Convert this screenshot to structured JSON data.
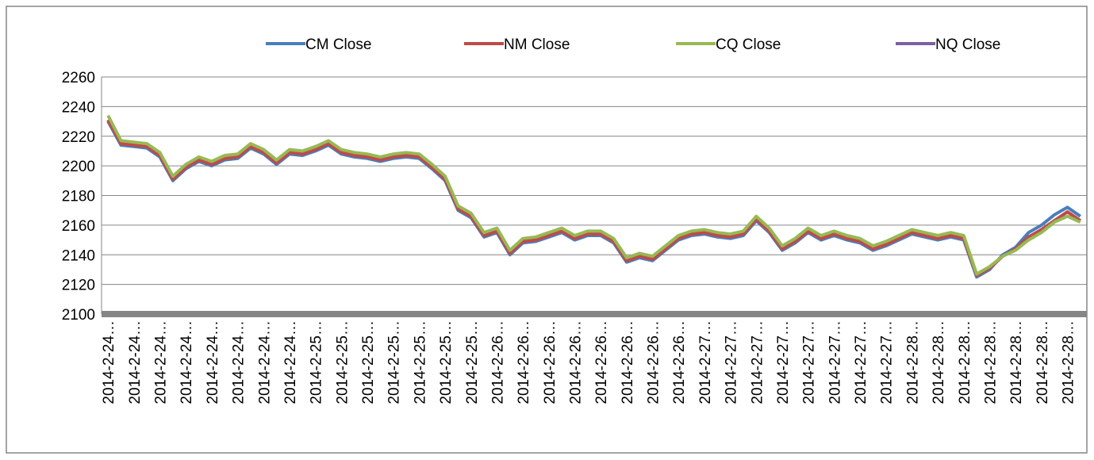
{
  "chart_data": {
    "type": "line",
    "categories": [
      "2014-2-24…",
      null,
      "2014-2-24…",
      null,
      "2014-2-24…",
      null,
      "2014-2-24…",
      null,
      "2014-2-24…",
      null,
      "2014-2-24…",
      null,
      "2014-2-24…",
      null,
      "2014-2-24…",
      null,
      "2014-2-25…",
      null,
      "2014-2-25…",
      null,
      "2014-2-25…",
      null,
      "2014-2-25…",
      null,
      "2014-2-25…",
      null,
      "2014-2-25…",
      null,
      "2014-2-25…",
      null,
      "2014-2-26…",
      null,
      "2014-2-26…",
      null,
      "2014-2-26…",
      null,
      "2014-2-26…",
      null,
      "2014-2-26…",
      null,
      "2014-2-26…",
      null,
      "2014-2-26…",
      null,
      "2014-2-26…",
      null,
      "2014-2-27…",
      null,
      "2014-2-27…",
      null,
      "2014-2-27…",
      null,
      "2014-2-27…",
      null,
      "2014-2-27…",
      null,
      "2014-2-27…",
      null,
      "2014-2-27…",
      null,
      "2014-2-27…",
      null,
      "2014-2-28…",
      null,
      "2014-2-28…",
      null,
      "2014-2-28…",
      null,
      "2014-2-28…",
      null,
      "2014-2-28…",
      null,
      "2014-2-28…",
      null,
      "2014-2-28…",
      null
    ],
    "series": [
      {
        "name": "CM Close",
        "color": "#4a7ebb",
        "values": [
          2230,
          2214,
          2213,
          2212,
          2206,
          2190,
          2198,
          2203,
          2200,
          2204,
          2205,
          2212,
          2208,
          2201,
          2208,
          2207,
          2210,
          2214,
          2208,
          2206,
          2205,
          2203,
          2205,
          2206,
          2205,
          2198,
          2190,
          2170,
          2165,
          2152,
          2155,
          2140,
          2148,
          2149,
          2152,
          2155,
          2150,
          2153,
          2153,
          2148,
          2135,
          2138,
          2136,
          2143,
          2150,
          2153,
          2154,
          2152,
          2151,
          2153,
          2163,
          2155,
          2143,
          2148,
          2155,
          2150,
          2153,
          2150,
          2148,
          2143,
          2146,
          2150,
          2154,
          2152,
          2150,
          2152,
          2150,
          2125,
          2130,
          2140,
          2145,
          2155,
          2160,
          2167,
          2172,
          2166
        ]
      },
      {
        "name": "NM Close",
        "color": "#be4b48",
        "values": [
          2231,
          2215,
          2214,
          2213,
          2207,
          2191,
          2199,
          2204,
          2201,
          2205,
          2206,
          2213,
          2209,
          2202,
          2209,
          2208,
          2211,
          2215,
          2209,
          2207,
          2206,
          2204,
          2206,
          2207,
          2206,
          2199,
          2191,
          2171,
          2166,
          2153,
          2156,
          2141,
          2149,
          2150,
          2153,
          2156,
          2151,
          2154,
          2154,
          2149,
          2136,
          2139,
          2137,
          2144,
          2151,
          2154,
          2155,
          2153,
          2152,
          2154,
          2164,
          2156,
          2144,
          2149,
          2156,
          2151,
          2154,
          2151,
          2149,
          2144,
          2147,
          2151,
          2155,
          2153,
          2151,
          2153,
          2151,
          2126,
          2131,
          2139,
          2144,
          2152,
          2157,
          2163,
          2169,
          2163
        ]
      },
      {
        "name": "CQ Close",
        "color": "#98b954",
        "values": [
          2234,
          2217,
          2216,
          2215,
          2209,
          2193,
          2201,
          2206,
          2203,
          2207,
          2208,
          2215,
          2211,
          2204,
          2211,
          2210,
          2213,
          2217,
          2211,
          2209,
          2208,
          2206,
          2208,
          2209,
          2208,
          2201,
          2193,
          2173,
          2168,
          2155,
          2158,
          2143,
          2151,
          2152,
          2155,
          2158,
          2153,
          2156,
          2156,
          2151,
          2138,
          2141,
          2139,
          2146,
          2153,
          2156,
          2157,
          2155,
          2154,
          2156,
          2166,
          2158,
          2146,
          2151,
          2158,
          2153,
          2156,
          2153,
          2151,
          2146,
          2149,
          2153,
          2157,
          2155,
          2153,
          2155,
          2153,
          2127,
          2132,
          2139,
          2143,
          2150,
          2155,
          2162,
          2166,
          2162
        ]
      },
      {
        "name": "NQ Close",
        "color": "#7d60a0",
        "values": [
          2231,
          2215,
          2214,
          2213,
          2207,
          2191,
          2199,
          2204,
          2201,
          2205,
          2206,
          2213,
          2209,
          2202,
          2209,
          2208,
          2211,
          2215,
          2209,
          2207,
          2206,
          2204,
          2206,
          2207,
          2206,
          2199,
          2191,
          2171,
          2166,
          2153,
          2156,
          2141,
          2149,
          2150,
          2153,
          2156,
          2151,
          2154,
          2154,
          2149,
          2136,
          2139,
          2137,
          2144,
          2151,
          2154,
          2155,
          2153,
          2152,
          2154,
          2164,
          2156,
          2144,
          2149,
          2156,
          2151,
          2154,
          2151,
          2149,
          2144,
          2147,
          2151,
          2155,
          2153,
          2151,
          2153,
          2151,
          2126,
          2131,
          2139,
          2144,
          2152,
          2157,
          2163,
          2169,
          2163
        ]
      }
    ],
    "ylim": [
      2100,
      2260
    ],
    "yticks": [
      2100,
      2120,
      2140,
      2160,
      2180,
      2200,
      2220,
      2240,
      2260
    ],
    "grid": true,
    "legend": "top"
  }
}
